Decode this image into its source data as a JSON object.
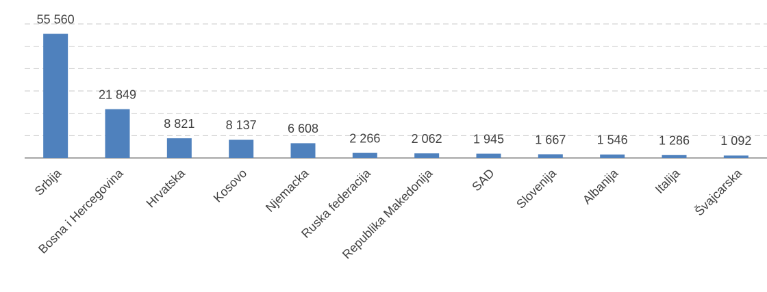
{
  "chart_data": {
    "type": "bar",
    "categories": [
      "Srbija",
      "Bosna i Hercegovina",
      "Hrvatska",
      "Kosovo",
      "Njemacka",
      "Ruska federacija",
      "Republika Makedonija",
      "SAD",
      "Slovenija",
      "Albanija",
      "Italija",
      "Švajcarska"
    ],
    "values": [
      55560,
      21849,
      8821,
      8137,
      6608,
      2266,
      2062,
      1945,
      1667,
      1546,
      1286,
      1092
    ],
    "value_labels": [
      "55 560",
      "21 849",
      "8 821",
      "8 137",
      "6 608",
      "2 266",
      "2 062",
      "1 945",
      "1 667",
      "1 546",
      "1 286",
      "1 092"
    ],
    "color": "#4f81bd",
    "ylim": [
      0,
      60000
    ],
    "yticks": [
      0,
      10000,
      20000,
      30000,
      40000,
      50000,
      60000
    ],
    "grid": true
  }
}
